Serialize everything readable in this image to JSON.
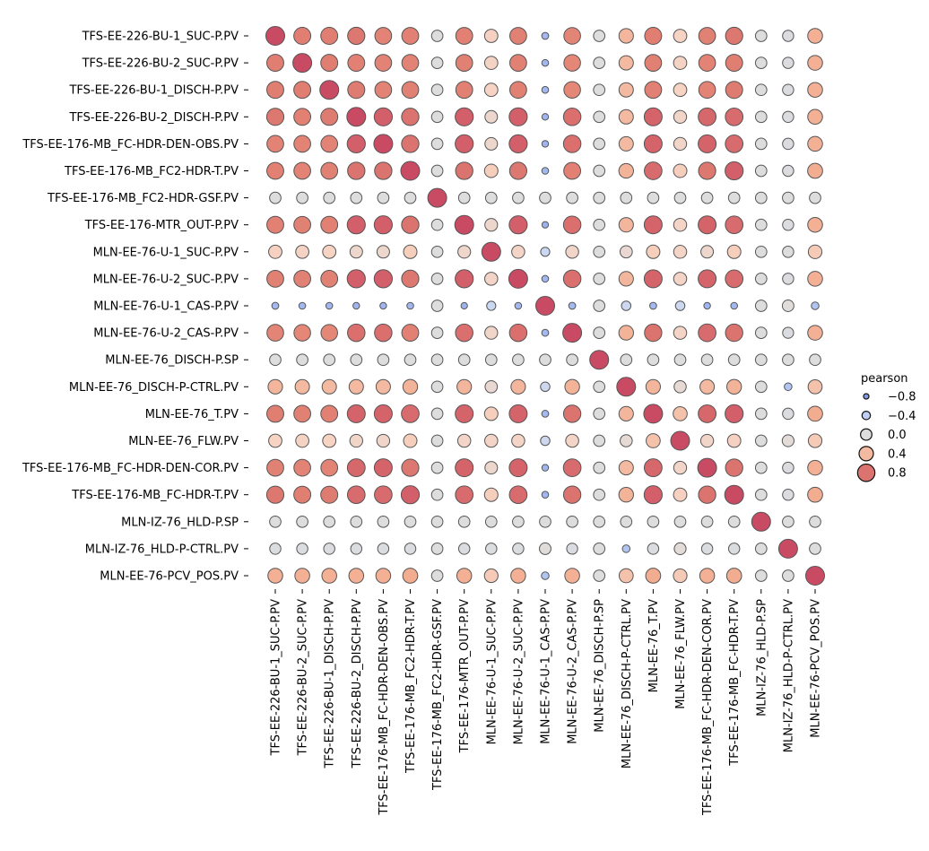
{
  "chart_data": {
    "type": "heatmap",
    "variables": [
      "TFS-EE-226-BU-1_SUC-P.PV",
      "TFS-EE-226-BU-2_SUC-P.PV",
      "TFS-EE-226-BU-1_DISCH-P.PV",
      "TFS-EE-226-BU-2_DISCH-P.PV",
      "TFS-EE-176-MB_FC-HDR-DEN-OBS.PV",
      "TFS-EE-176-MB_FC2-HDR-T.PV",
      "TFS-EE-176-MB_FC2-HDR-GSF.PV",
      "TFS-EE-176-MTR_OUT-P.PV",
      "MLN-EE-76-U-1_SUC-P.PV",
      "MLN-EE-76-U-2_SUC-P.PV",
      "MLN-EE-76-U-1_CAS-P.PV",
      "MLN-EE-76-U-2_CAS-P.PV",
      "MLN-EE-76_DISCH-P.SP",
      "MLN-EE-76_DISCH-P-CTRL.PV",
      "MLN-EE-76_T.PV",
      "MLN-EE-76_FLW.PV",
      "TFS-EE-176-MB_FC-HDR-DEN-COR.PV",
      "TFS-EE-176-MB_FC-HDR-T.PV",
      "MLN-IZ-76_HLD-P.SP",
      "MLN-IZ-76_HLD-P-CTRL.PV",
      "MLN-EE-76-PCV_POS.PV"
    ],
    "values": [
      [
        1.0,
        0.75,
        0.75,
        0.78,
        0.72,
        0.74,
        0.0,
        0.74,
        0.26,
        0.73,
        -0.6,
        0.71,
        0.0,
        0.42,
        0.75,
        0.25,
        0.73,
        0.78,
        0.0,
        -0.03,
        0.46
      ],
      [
        0.75,
        1.0,
        0.75,
        0.74,
        0.72,
        0.72,
        0.0,
        0.73,
        0.24,
        0.73,
        -0.62,
        0.7,
        0.0,
        0.4,
        0.73,
        0.24,
        0.72,
        0.75,
        0.0,
        -0.03,
        0.46
      ],
      [
        0.75,
        0.75,
        1.0,
        0.76,
        0.72,
        0.73,
        0.0,
        0.74,
        0.25,
        0.73,
        -0.62,
        0.7,
        0.0,
        0.4,
        0.74,
        0.25,
        0.72,
        0.76,
        0.0,
        -0.03,
        0.46
      ],
      [
        0.78,
        0.74,
        0.76,
        1.0,
        0.9,
        0.8,
        0.0,
        0.9,
        0.16,
        0.9,
        -0.64,
        0.82,
        0.0,
        0.4,
        0.88,
        0.2,
        0.86,
        0.84,
        0.0,
        -0.03,
        0.46
      ],
      [
        0.72,
        0.72,
        0.72,
        0.9,
        1.0,
        0.8,
        0.0,
        0.9,
        0.16,
        0.9,
        -0.64,
        0.82,
        0.0,
        0.4,
        0.88,
        0.2,
        0.88,
        0.84,
        0.0,
        -0.03,
        0.46
      ],
      [
        0.74,
        0.72,
        0.73,
        0.8,
        0.8,
        1.0,
        0.0,
        0.8,
        0.28,
        0.78,
        -0.62,
        0.74,
        0.0,
        0.44,
        0.84,
        0.28,
        0.78,
        0.9,
        0.0,
        -0.03,
        0.48
      ],
      [
        0.0,
        0.0,
        0.0,
        0.0,
        0.0,
        0.0,
        1.0,
        0.0,
        0.0,
        0.0,
        0.0,
        0.0,
        0.0,
        0.0,
        0.0,
        0.0,
        0.0,
        0.0,
        0.0,
        0.0,
        0.0
      ],
      [
        0.74,
        0.73,
        0.74,
        0.9,
        0.9,
        0.8,
        0.0,
        1.0,
        0.18,
        0.9,
        -0.66,
        0.82,
        0.0,
        0.42,
        0.88,
        0.22,
        0.88,
        0.84,
        0.0,
        -0.03,
        0.46
      ],
      [
        0.26,
        0.24,
        0.25,
        0.16,
        0.16,
        0.28,
        0.0,
        0.18,
        1.0,
        0.22,
        -0.3,
        0.2,
        0.0,
        0.12,
        0.28,
        0.22,
        0.16,
        0.28,
        0.0,
        -0.02,
        0.3
      ],
      [
        0.73,
        0.73,
        0.73,
        0.9,
        0.9,
        0.78,
        0.0,
        0.9,
        0.22,
        1.0,
        -0.62,
        0.82,
        0.0,
        0.42,
        0.88,
        0.22,
        0.88,
        0.84,
        0.0,
        -0.03,
        0.46
      ],
      [
        -0.6,
        -0.62,
        -0.62,
        -0.64,
        -0.64,
        -0.62,
        0.0,
        -0.66,
        -0.3,
        -0.62,
        1.0,
        -0.6,
        0.0,
        -0.26,
        -0.6,
        -0.26,
        -0.64,
        -0.62,
        0.0,
        0.03,
        -0.5
      ],
      [
        0.71,
        0.7,
        0.7,
        0.82,
        0.82,
        0.74,
        0.0,
        0.82,
        0.2,
        0.82,
        -0.6,
        1.0,
        0.0,
        0.44,
        0.8,
        0.22,
        0.84,
        0.8,
        0.0,
        -0.05,
        0.46
      ],
      [
        0.0,
        0.0,
        0.0,
        0.0,
        0.0,
        0.0,
        0.0,
        0.0,
        0.0,
        0.0,
        0.0,
        0.0,
        1.0,
        0.0,
        0.0,
        0.0,
        0.0,
        0.0,
        0.0,
        0.0,
        0.0
      ],
      [
        0.42,
        0.4,
        0.4,
        0.4,
        0.4,
        0.44,
        0.0,
        0.42,
        0.12,
        0.42,
        -0.26,
        0.44,
        0.0,
        1.0,
        0.42,
        0.1,
        0.4,
        0.44,
        0.0,
        -0.5,
        0.36
      ],
      [
        0.75,
        0.73,
        0.74,
        0.88,
        0.88,
        0.84,
        0.0,
        0.88,
        0.28,
        0.88,
        -0.6,
        0.8,
        0.0,
        0.42,
        1.0,
        0.36,
        0.86,
        0.9,
        0.0,
        -0.03,
        0.48
      ],
      [
        0.25,
        0.24,
        0.25,
        0.2,
        0.2,
        0.28,
        0.0,
        0.22,
        0.22,
        0.22,
        -0.26,
        0.22,
        0.0,
        0.1,
        0.36,
        1.0,
        0.2,
        0.26,
        0.0,
        0.06,
        0.3
      ],
      [
        0.73,
        0.72,
        0.72,
        0.86,
        0.88,
        0.78,
        0.0,
        0.88,
        0.16,
        0.88,
        -0.64,
        0.84,
        0.0,
        0.4,
        0.86,
        0.2,
        1.0,
        0.8,
        0.0,
        -0.03,
        0.46
      ],
      [
        0.78,
        0.75,
        0.76,
        0.84,
        0.84,
        0.9,
        0.0,
        0.84,
        0.28,
        0.84,
        -0.62,
        0.8,
        0.0,
        0.44,
        0.9,
        0.26,
        0.8,
        1.0,
        0.0,
        -0.03,
        0.48
      ],
      [
        0.0,
        0.0,
        0.0,
        0.0,
        0.0,
        0.0,
        0.0,
        0.0,
        0.0,
        0.0,
        0.0,
        0.0,
        0.0,
        0.0,
        0.0,
        0.0,
        0.0,
        0.0,
        1.0,
        0.0,
        0.0
      ],
      [
        -0.03,
        -0.03,
        -0.03,
        -0.03,
        -0.03,
        -0.03,
        0.0,
        -0.03,
        -0.02,
        -0.03,
        0.03,
        -0.05,
        0.0,
        -0.5,
        -0.03,
        0.06,
        -0.03,
        -0.03,
        0.0,
        1.0,
        0.0
      ],
      [
        0.46,
        0.46,
        0.46,
        0.46,
        0.46,
        0.48,
        0.0,
        0.46,
        0.3,
        0.46,
        -0.5,
        0.46,
        0.0,
        0.36,
        0.48,
        0.3,
        0.46,
        0.48,
        0.0,
        0.0,
        1.0
      ]
    ],
    "value_range": [
      -1,
      1
    ],
    "legend": {
      "title": "pearson",
      "entries": [
        {
          "label": "−0.8",
          "value": -0.8
        },
        {
          "label": "−0.4",
          "value": -0.4
        },
        {
          "label": "0.0",
          "value": 0.0
        },
        {
          "label": "0.4",
          "value": 0.4
        },
        {
          "label": "0.8",
          "value": 0.8
        }
      ],
      "placement": "right"
    },
    "colormap": {
      "negative": "#3b4cc0",
      "neutral": "#dddddd",
      "positive": "#b40426"
    },
    "grid": false
  }
}
